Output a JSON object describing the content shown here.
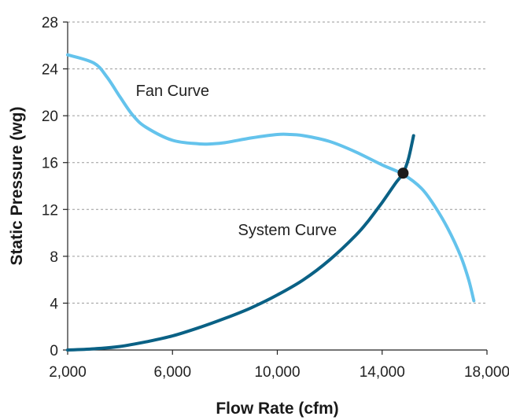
{
  "chart_data": {
    "type": "line",
    "title": "",
    "xlabel": "Flow Rate (cfm)",
    "ylabel": "Static Pressure (wg)",
    "xlim": [
      2000,
      18000
    ],
    "ylim": [
      0,
      28
    ],
    "x_ticks": [
      2000,
      6000,
      10000,
      14000,
      18000
    ],
    "x_tick_labels": [
      "2,000",
      "6,000",
      "10,000",
      "14,000",
      "18,000"
    ],
    "y_ticks": [
      0,
      4,
      8,
      12,
      16,
      20,
      24,
      28
    ],
    "y_tick_labels": [
      "0",
      "4",
      "8",
      "12",
      "16",
      "20",
      "24",
      "28"
    ],
    "grid": "horizontal-dashed",
    "legend": "none",
    "series": [
      {
        "name": "Fan Curve",
        "color": "#64c3ec",
        "x": [
          2000,
          3000,
          3500,
          4000,
          4500,
          5000,
          6000,
          7000,
          7500,
          8000,
          9000,
          10000,
          10500,
          11000,
          12000,
          13000,
          14000,
          14800,
          15500,
          16000,
          16500,
          17000,
          17300,
          17500
        ],
        "y": [
          25.2,
          24.5,
          23.3,
          21.6,
          20.0,
          19.0,
          17.9,
          17.6,
          17.6,
          17.7,
          18.1,
          18.4,
          18.4,
          18.3,
          17.8,
          16.9,
          15.8,
          15.0,
          13.8,
          12.3,
          10.4,
          8.0,
          6.0,
          4.2
        ]
      },
      {
        "name": "System Curve",
        "color": "#0a6185",
        "x": [
          2000,
          3000,
          4000,
          5000,
          6000,
          7000,
          8000,
          9000,
          10000,
          11000,
          12000,
          13000,
          13500,
          14000,
          14500,
          14800,
          15000,
          15200
        ],
        "y": [
          0.0,
          0.1,
          0.3,
          0.7,
          1.2,
          1.9,
          2.7,
          3.6,
          4.7,
          6.0,
          7.7,
          9.8,
          11.1,
          12.6,
          14.2,
          15.1,
          16.3,
          18.3
        ]
      }
    ],
    "annotations": [
      {
        "text": "Fan Curve",
        "x": 4600,
        "y": 21.7
      },
      {
        "text": "System Curve",
        "x": 8500,
        "y": 9.8
      }
    ],
    "operating_point": {
      "x": 14800,
      "y": 15.1,
      "color": "#1b1b1b"
    }
  }
}
